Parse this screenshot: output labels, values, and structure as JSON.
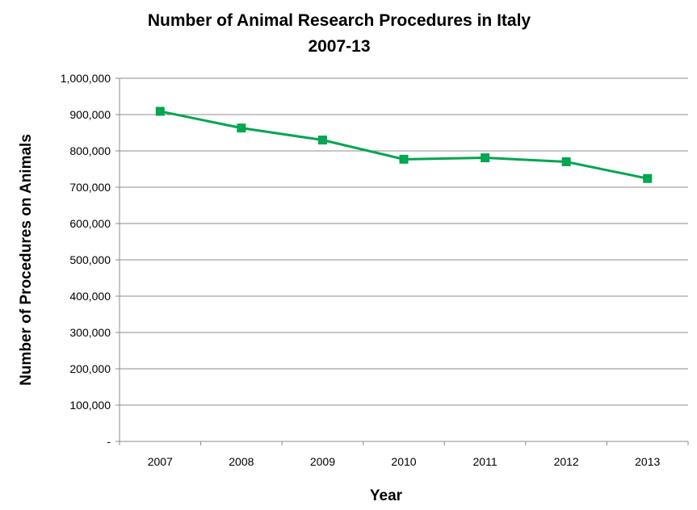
{
  "chart_data": {
    "type": "line",
    "title_line1": "Number of Animal Research Procedures in Italy",
    "title_line2": "2007-13",
    "xlabel": "Year",
    "ylabel": "Number of Procedures on Animals",
    "categories": [
      "2007",
      "2008",
      "2009",
      "2010",
      "2011",
      "2012",
      "2013"
    ],
    "values": [
      909000,
      863000,
      830000,
      777000,
      781000,
      770000,
      724000
    ],
    "ylim": [
      0,
      1000000
    ],
    "yticks": [
      "-",
      "100,000",
      "200,000",
      "300,000",
      "400,000",
      "500,000",
      "600,000",
      "700,000",
      "800,000",
      "900,000",
      "1,000,000"
    ],
    "grid": true,
    "line_color": "#00a651",
    "marker": "square"
  }
}
